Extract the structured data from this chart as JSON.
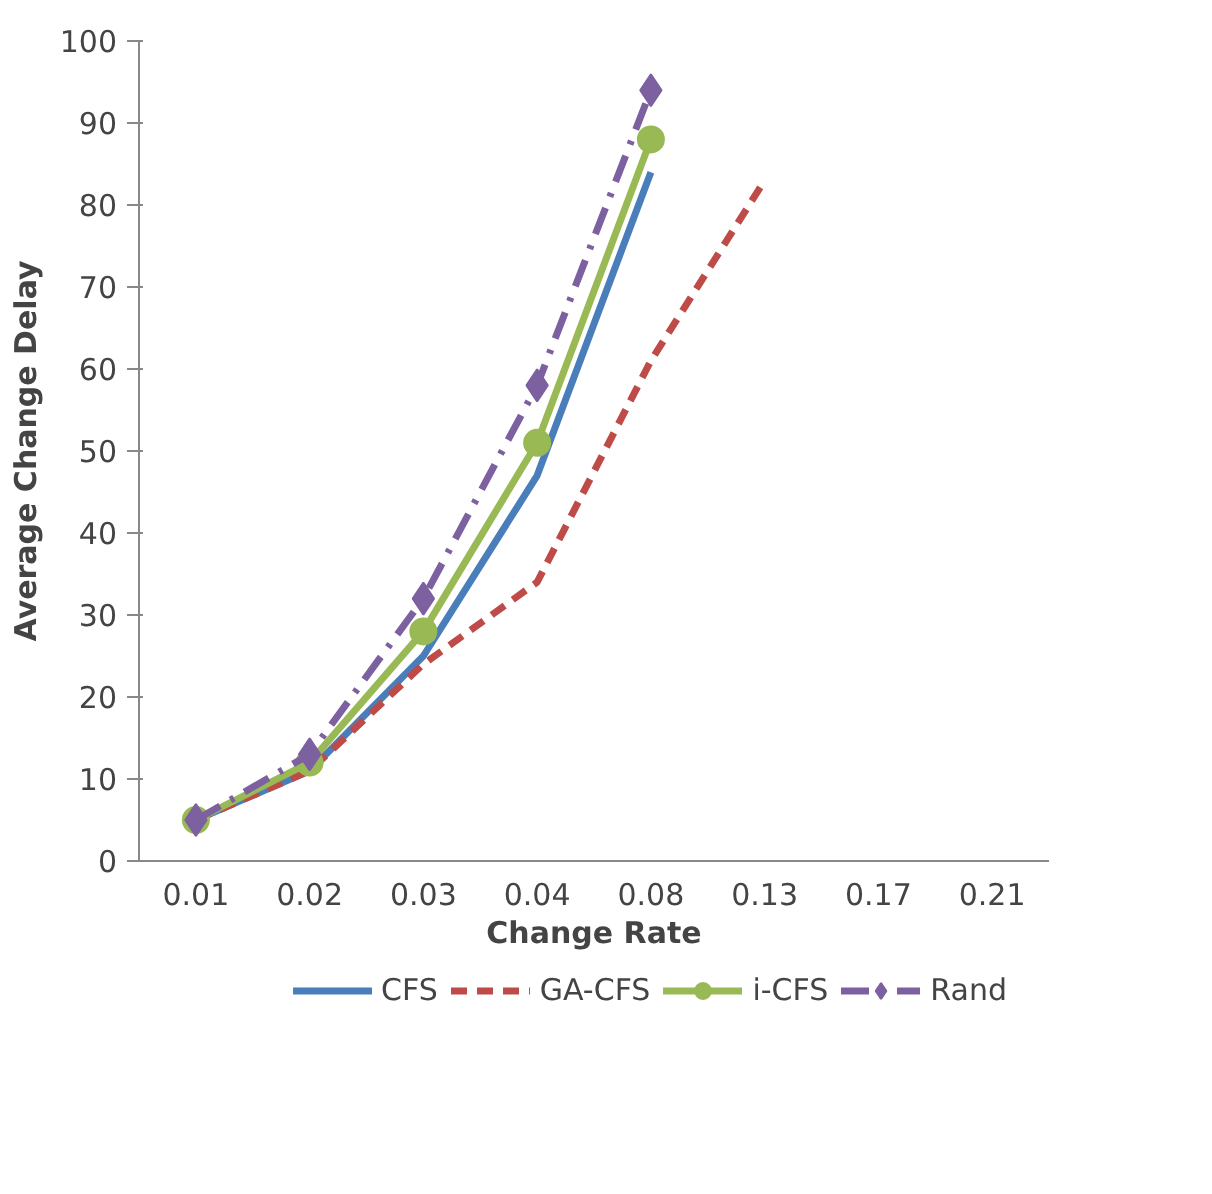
{
  "chart_data": {
    "type": "line",
    "xlabel": "Change Rate",
    "ylabel": "Average Change Delay",
    "categories": [
      "0.01",
      "0.02",
      "0.03",
      "0.04",
      "0.08",
      "0.13",
      "0.17",
      "0.21"
    ],
    "ylim": [
      0,
      100
    ],
    "yticks": [
      0,
      10,
      20,
      30,
      40,
      50,
      60,
      70,
      80,
      90,
      100
    ],
    "grid": false,
    "legend": "bottom",
    "series": [
      {
        "name": "CFS",
        "color": "#4a7ebb",
        "line_style": "solid",
        "marker": "none",
        "values": [
          5,
          11,
          25,
          47,
          84,
          null,
          null,
          null
        ]
      },
      {
        "name": "GA-CFS",
        "color": "#be4b48",
        "line_style": "dashed",
        "marker": "none",
        "values": [
          5,
          11,
          24,
          34,
          61,
          83,
          null,
          null
        ]
      },
      {
        "name": "i-CFS",
        "color": "#98b954",
        "line_style": "solid",
        "marker": "circle",
        "values": [
          5,
          12,
          28,
          51,
          88,
          null,
          null,
          null
        ]
      },
      {
        "name": "Rand",
        "color": "#7d60a0",
        "line_style": "dashdot",
        "marker": "diamond",
        "values": [
          5,
          13,
          32,
          58,
          94,
          null,
          null,
          null
        ]
      }
    ]
  }
}
